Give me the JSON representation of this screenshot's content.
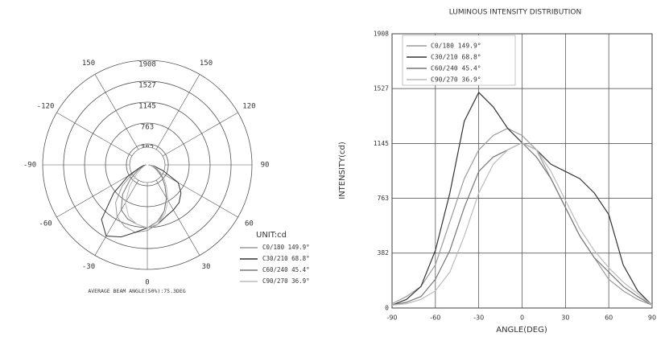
{
  "chart_data": [
    {
      "type": "polar",
      "unit_label": "UNIT:cd",
      "annotation": "AVERAGE BEAM ANGLE(50%):75.3DEG",
      "rlim": [
        0,
        1908
      ],
      "rticks": [
        382,
        763,
        1145,
        1527,
        1908
      ],
      "thetaticks": [
        {
          "value": -150,
          "label": "150"
        },
        150,
        -120,
        120,
        -90,
        90,
        -60,
        60,
        -30,
        30,
        0
      ],
      "x": [
        -90,
        -80,
        -70,
        -60,
        -50,
        -40,
        -30,
        -20,
        -10,
        0,
        10,
        20,
        30,
        40,
        50,
        60,
        70,
        80,
        90
      ],
      "series": [
        {
          "name": "C0/180 149.9°",
          "color": "#9a9a9a",
          "values": [
            30,
            80,
            150,
            300,
            600,
            900,
            1100,
            1200,
            1250,
            1200,
            1100,
            900,
            700,
            500,
            350,
            200,
            120,
            60,
            20
          ]
        },
        {
          "name": "C30/210 68.8°",
          "color": "#333333",
          "values": [
            20,
            60,
            150,
            400,
            800,
            1300,
            1500,
            1400,
            1250,
            1150,
            1100,
            1000,
            950,
            900,
            800,
            650,
            300,
            120,
            20
          ]
        },
        {
          "name": "C60/240 45.4°",
          "color": "#777777",
          "values": [
            20,
            40,
            80,
            200,
            400,
            700,
            950,
            1050,
            1100,
            1150,
            1050,
            900,
            700,
            500,
            350,
            250,
            150,
            80,
            20
          ]
        },
        {
          "name": "C90/270 36.9°",
          "color": "#bbbbbb",
          "values": [
            20,
            30,
            60,
            120,
            250,
            500,
            800,
            1000,
            1100,
            1150,
            1100,
            950,
            750,
            550,
            400,
            280,
            180,
            100,
            20
          ]
        }
      ]
    },
    {
      "type": "line",
      "title": "LUMINOUS INTENSITY DISTRIBUTION",
      "x_label": "ANGLE(DEG)",
      "y_label": "INTENSITY(cd)",
      "xlim": [
        -90,
        90
      ],
      "ylim": [
        0,
        1908
      ],
      "xticks": [
        -90,
        -60,
        -30,
        0,
        30,
        60,
        90
      ],
      "yticks": [
        0,
        382,
        763,
        1145,
        1527,
        1908
      ],
      "grid": true,
      "x": [
        -90,
        -80,
        -70,
        -60,
        -50,
        -40,
        -30,
        -20,
        -10,
        0,
        10,
        20,
        30,
        40,
        50,
        60,
        70,
        80,
        90
      ],
      "series": [
        {
          "name": "C0/180 149.9°",
          "color": "#9a9a9a",
          "values": [
            30,
            80,
            150,
            300,
            600,
            900,
            1100,
            1200,
            1250,
            1200,
            1100,
            900,
            700,
            500,
            350,
            200,
            120,
            60,
            20
          ]
        },
        {
          "name": "C30/210 68.8°",
          "color": "#333333",
          "values": [
            20,
            60,
            150,
            400,
            800,
            1300,
            1500,
            1400,
            1250,
            1150,
            1100,
            1000,
            950,
            900,
            800,
            650,
            300,
            120,
            20
          ]
        },
        {
          "name": "C60/240 45.4°",
          "color": "#777777",
          "values": [
            20,
            40,
            80,
            200,
            400,
            700,
            950,
            1050,
            1100,
            1150,
            1050,
            900,
            700,
            500,
            350,
            250,
            150,
            80,
            20
          ]
        },
        {
          "name": "C90/270 36.9°",
          "color": "#bbbbbb",
          "values": [
            20,
            30,
            60,
            120,
            250,
            500,
            800,
            1000,
            1100,
            1150,
            1100,
            950,
            750,
            550,
            400,
            280,
            180,
            100,
            20
          ]
        }
      ]
    }
  ]
}
